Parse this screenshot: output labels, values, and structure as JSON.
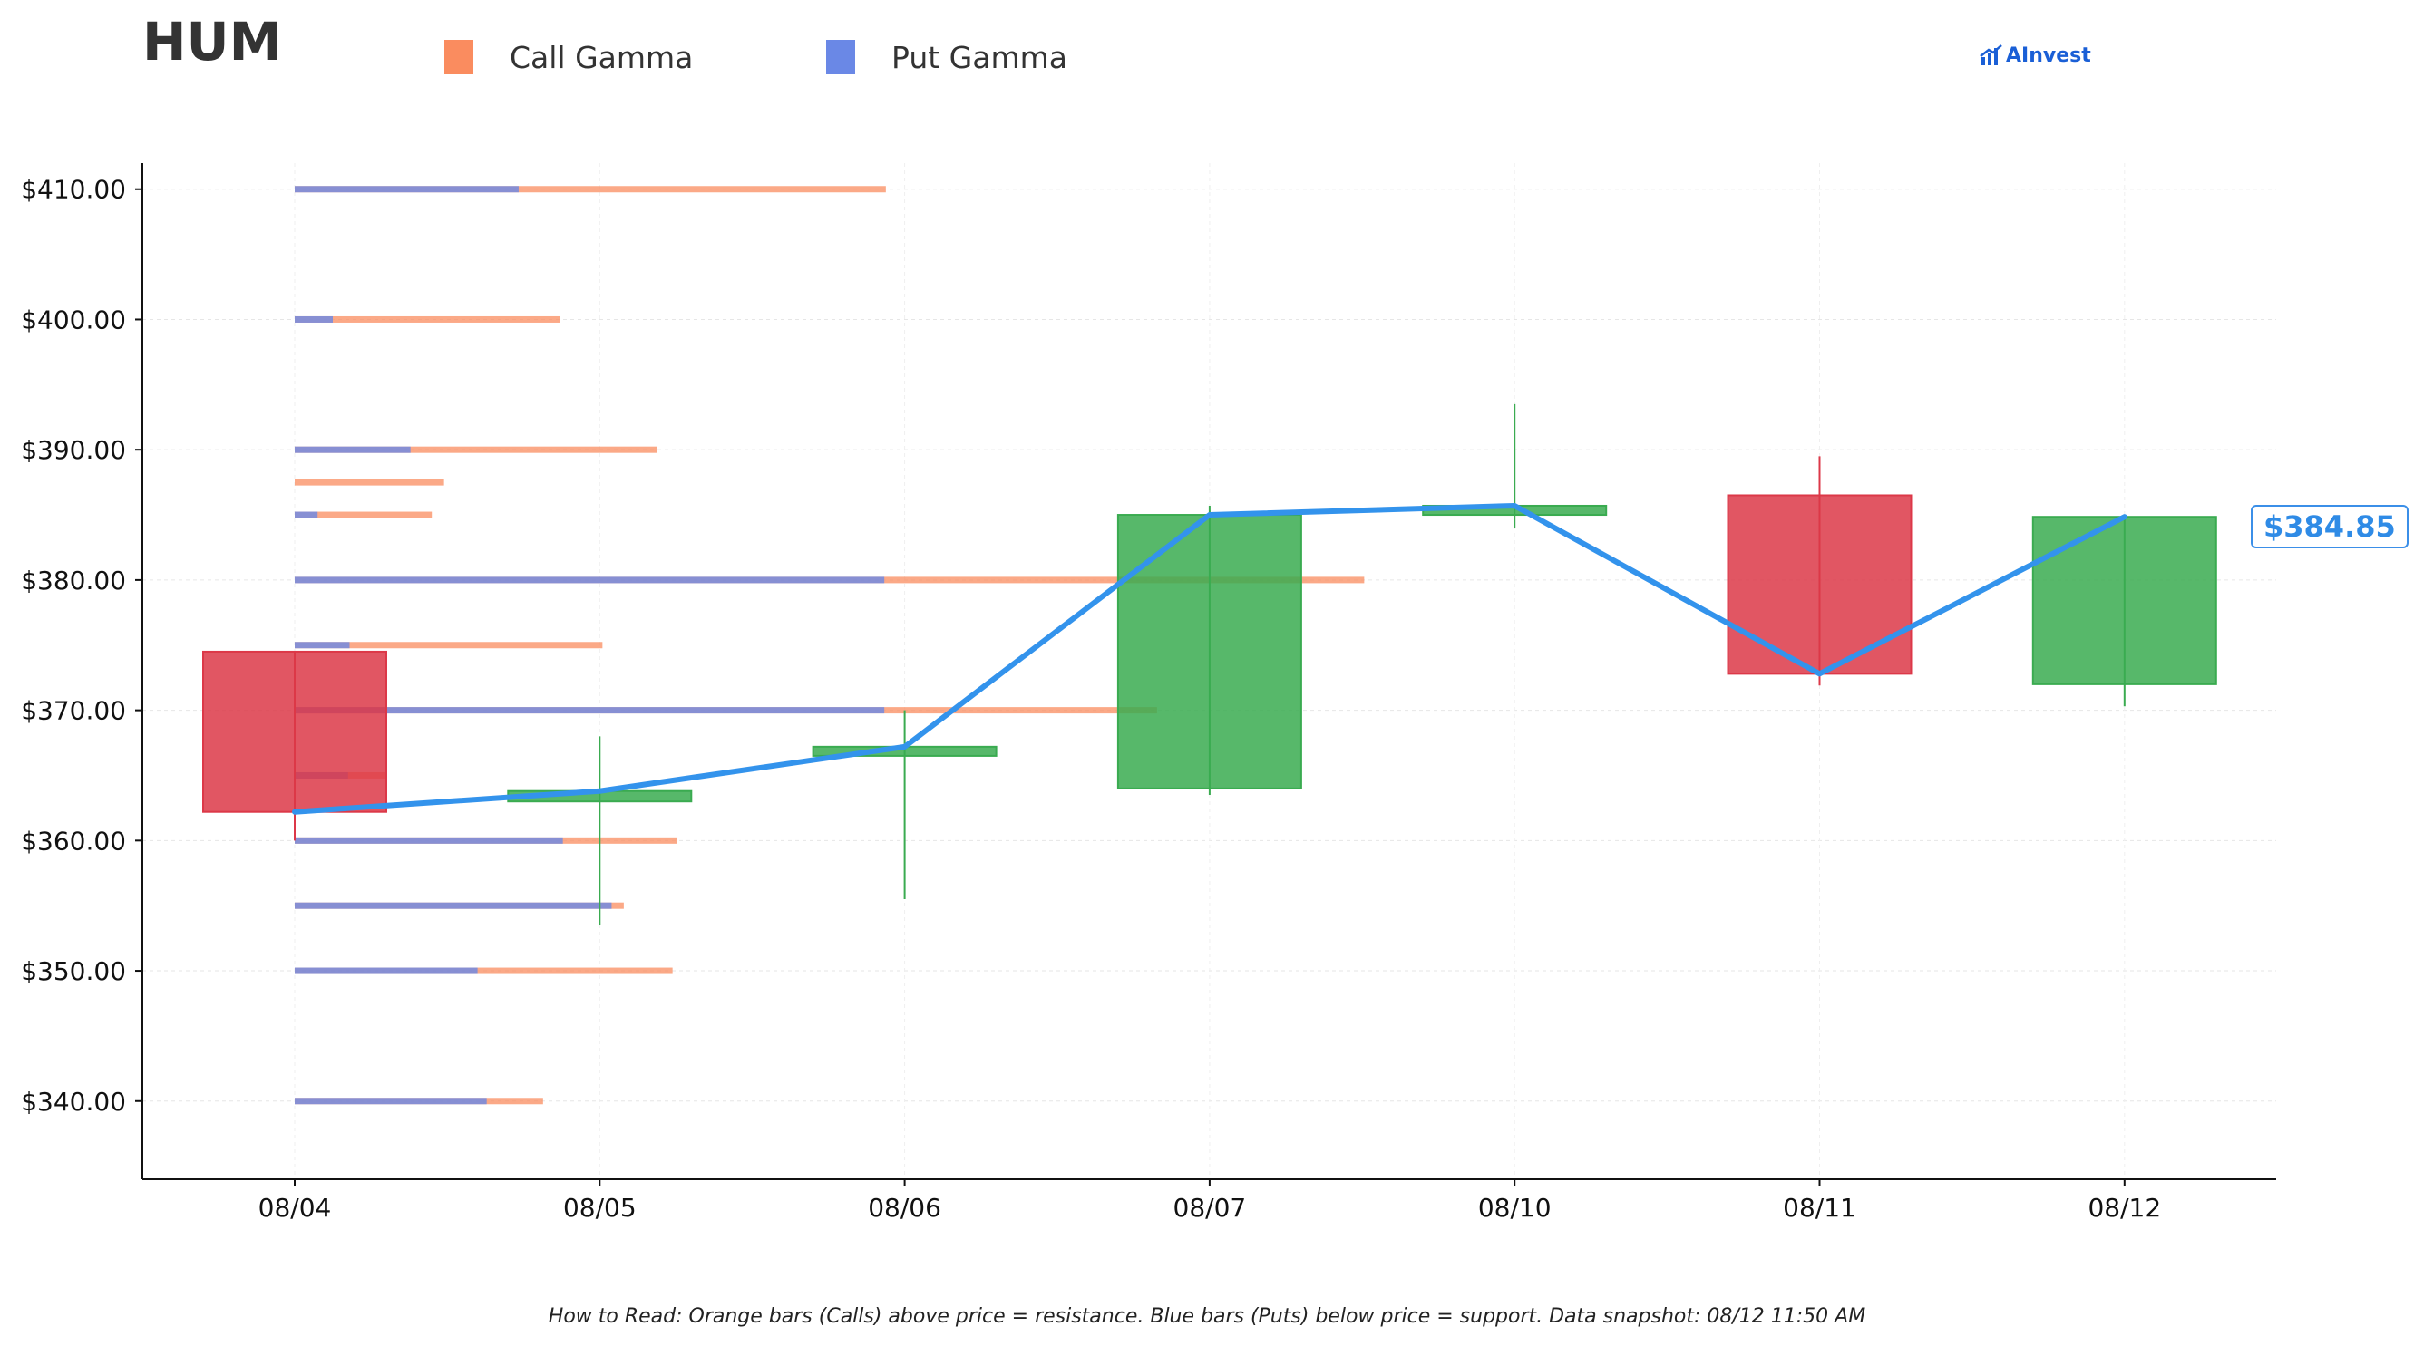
{
  "header": {
    "ticker": "HUM",
    "brand": "AInvest"
  },
  "legend": [
    {
      "label": "Call Gamma",
      "color": "#fa8c5f"
    },
    {
      "label": "Put Gamma",
      "color": "#6a88e6"
    }
  ],
  "current_price_label": "$384.85",
  "footnote": "How to Read: Orange bars (Calls) above price = resistance. Blue bars (Puts) below price = support. Data snapshot: 08/12 11:50 AM",
  "colors": {
    "up": "#3aab50",
    "down": "#dc3848",
    "price_line": "#3393ec",
    "call": "#fa8c5f",
    "put": "#6a88e6"
  },
  "chart_data": {
    "type": "candlestick",
    "ylim": [
      334,
      412
    ],
    "yticks": [
      340,
      350,
      360,
      370,
      380,
      390,
      400,
      410
    ],
    "ytick_labels": [
      "$340.00",
      "$350.00",
      "$360.00",
      "$370.00",
      "$380.00",
      "$390.00",
      "$400.00",
      "$410.00"
    ],
    "grid": true,
    "categories": [
      "08/04",
      "08/05",
      "08/06",
      "08/07",
      "08/10",
      "08/11",
      "08/12"
    ],
    "candles": [
      {
        "date": "08/04",
        "open": 374.5,
        "close": 362.2,
        "high": 374.5,
        "low": 360.0
      },
      {
        "date": "08/05",
        "open": 363.0,
        "close": 363.8,
        "high": 368.0,
        "low": 353.5
      },
      {
        "date": "08/06",
        "open": 366.5,
        "close": 367.2,
        "high": 370.0,
        "low": 355.5
      },
      {
        "date": "08/07",
        "open": 364.0,
        "close": 385.0,
        "high": 385.7,
        "low": 363.5
      },
      {
        "date": "08/10",
        "open": 385.0,
        "close": 385.7,
        "high": 393.5,
        "low": 384.0
      },
      {
        "date": "08/11",
        "open": 386.5,
        "close": 372.8,
        "high": 389.5,
        "low": 371.9
      },
      {
        "date": "08/12",
        "open": 372.0,
        "close": 384.85,
        "high": 384.85,
        "low": 370.3
      }
    ],
    "price_line": [
      362.2,
      363.8,
      367.2,
      385.0,
      385.7,
      372.8,
      384.85
    ],
    "current_price": 384.85,
    "gamma_bars": [
      {
        "strike": 410,
        "put": 1.47,
        "call": 3.88
      },
      {
        "strike": 400,
        "put": 0.25,
        "call": 1.74
      },
      {
        "strike": 390,
        "put": 0.76,
        "call": 2.38
      },
      {
        "strike": 387.5,
        "put": 0.0,
        "call": 0.98
      },
      {
        "strike": 385,
        "put": 0.15,
        "call": 0.9
      },
      {
        "strike": 380,
        "put": 3.87,
        "call": 7.02
      },
      {
        "strike": 375,
        "put": 0.36,
        "call": 2.02
      },
      {
        "strike": 370,
        "put": 3.87,
        "call": 5.66
      },
      {
        "strike": 365,
        "put": 0.35,
        "call": 0.6
      },
      {
        "strike": 360,
        "put": 1.76,
        "call": 2.51
      },
      {
        "strike": 355,
        "put": 2.08,
        "call": 2.16
      },
      {
        "strike": 350,
        "put": 1.2,
        "call": 2.48
      },
      {
        "strike": 340,
        "put": 1.26,
        "call": 1.63
      }
    ]
  }
}
